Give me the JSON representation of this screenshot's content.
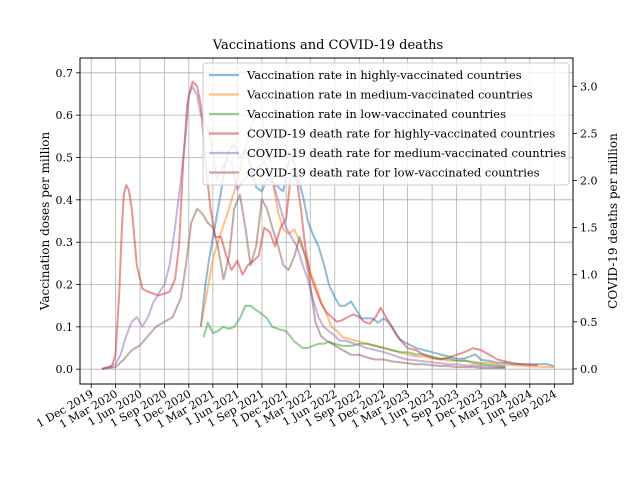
{
  "chart_data": {
    "type": "line",
    "title": "Vaccinations and COVID-19 deaths",
    "ylabel": "Vaccination doses per million",
    "y2label": "COVID-19 deaths per million",
    "ylim": [
      -0.035,
      0.735
    ],
    "y2lim": [
      -0.16,
      3.3
    ],
    "yticks": [
      0.0,
      0.1,
      0.2,
      0.3,
      0.4,
      0.5,
      0.6,
      0.7
    ],
    "yticklabels": [
      "0.0",
      "0.1",
      "0.2",
      "0.3",
      "0.4",
      "0.5",
      "0.6",
      "0.7"
    ],
    "y2ticks": [
      0.0,
      0.5,
      1.0,
      1.5,
      2.0,
      2.5,
      3.0
    ],
    "y2ticklabels": [
      "0.0",
      "0.5",
      "1.0",
      "1.5",
      "2.0",
      "2.5",
      "3.0"
    ],
    "xlim": [
      "2019-10-20",
      "2024-11-10"
    ],
    "xticks": [
      "2019-12-01",
      "2020-03-01",
      "2020-06-01",
      "2020-09-01",
      "2020-12-01",
      "2021-03-01",
      "2021-06-01",
      "2021-09-01",
      "2021-12-01",
      "2022-03-01",
      "2022-06-01",
      "2022-09-01",
      "2022-12-01",
      "2023-03-01",
      "2023-06-01",
      "2023-09-01",
      "2023-12-01",
      "2024-03-01",
      "2024-06-01",
      "2024-09-01"
    ],
    "xticklabels": [
      "1 Dec 2019",
      "1 Mar 2020",
      "1 Jun 2020",
      "1 Sep 2020",
      "1 Dec 2020",
      "1 Mar 2021",
      "1 Jun 2021",
      "1 Sep 2021",
      "1 Dec 2021",
      "1 Mar 2022",
      "1 Jun 2022",
      "1 Sep 2022",
      "1 Dec 2022",
      "1 Mar 2023",
      "1 Jun 2023",
      "1 Sep 2023",
      "1 Dec 2023",
      "1 Mar 2024",
      "1 Jun 2024",
      "1 Sep 2024"
    ],
    "grid": true,
    "legend_position": "top-right",
    "series": [
      {
        "name": "Vaccination rate in highly-vaccinated countries",
        "axis": "left",
        "color": "#1f77b4",
        "x": [
          "2021-01-15",
          "2021-02-01",
          "2021-02-15",
          "2021-03-01",
          "2021-03-15",
          "2021-04-01",
          "2021-04-15",
          "2021-05-01",
          "2021-05-20",
          "2021-06-10",
          "2021-07-01",
          "2021-07-20",
          "2021-08-10",
          "2021-09-01",
          "2021-09-20",
          "2021-10-10",
          "2021-11-01",
          "2021-11-20",
          "2021-12-05",
          "2021-12-20",
          "2022-01-05",
          "2022-01-20",
          "2022-02-05",
          "2022-02-20",
          "2022-03-10",
          "2022-04-01",
          "2022-04-20",
          "2022-05-10",
          "2022-06-01",
          "2022-06-20",
          "2022-07-10",
          "2022-08-01",
          "2022-08-20",
          "2022-09-10",
          "2022-10-01",
          "2022-10-20",
          "2022-11-10",
          "2022-12-01",
          "2022-12-20",
          "2023-01-10",
          "2023-02-01",
          "2023-03-01",
          "2023-04-01",
          "2023-05-01",
          "2023-06-01",
          "2023-07-01",
          "2023-08-01",
          "2023-09-01",
          "2023-10-01",
          "2023-10-20",
          "2023-11-10",
          "2023-12-01",
          "2024-01-01",
          "2024-02-01",
          "2024-03-01",
          "2024-04-01",
          "2024-05-01",
          "2024-06-01",
          "2024-07-01",
          "2024-08-01",
          "2024-09-01"
        ],
        "y": [
          0.1,
          0.2,
          0.26,
          0.31,
          0.36,
          0.42,
          0.48,
          0.52,
          0.53,
          0.5,
          0.52,
          0.48,
          0.43,
          0.42,
          0.45,
          0.44,
          0.43,
          0.42,
          0.48,
          0.5,
          0.48,
          0.44,
          0.4,
          0.35,
          0.32,
          0.29,
          0.25,
          0.2,
          0.17,
          0.15,
          0.15,
          0.16,
          0.14,
          0.12,
          0.12,
          0.12,
          0.11,
          0.12,
          0.11,
          0.09,
          0.07,
          0.06,
          0.05,
          0.045,
          0.04,
          0.035,
          0.03,
          0.025,
          0.025,
          0.03,
          0.035,
          0.022,
          0.02,
          0.015,
          0.015,
          0.012,
          0.012,
          0.01,
          0.012,
          0.012,
          0.007
        ]
      },
      {
        "name": "Vaccination rate in medium-vaccinated countries",
        "axis": "left",
        "color": "#ff7f0e",
        "x": [
          "2021-01-15",
          "2021-02-01",
          "2021-02-15",
          "2021-03-01",
          "2021-03-20",
          "2021-04-10",
          "2021-05-01",
          "2021-05-20",
          "2021-06-10",
          "2021-07-01",
          "2021-07-20",
          "2021-08-10",
          "2021-09-01",
          "2021-09-20",
          "2021-10-10",
          "2021-11-01",
          "2021-11-20",
          "2021-12-10",
          "2022-01-01",
          "2022-01-20",
          "2022-02-10",
          "2022-03-01",
          "2022-03-20",
          "2022-04-10",
          "2022-05-01",
          "2022-05-20",
          "2022-06-10",
          "2022-07-01",
          "2022-08-01",
          "2022-09-01",
          "2022-10-01",
          "2022-11-01",
          "2022-12-01",
          "2023-01-01",
          "2023-02-01",
          "2023-03-01",
          "2023-04-01",
          "2023-05-01",
          "2023-06-01",
          "2023-07-01",
          "2023-08-01",
          "2023-09-01",
          "2023-10-01",
          "2023-11-01",
          "2023-12-01",
          "2024-01-01",
          "2024-02-01",
          "2024-03-01",
          "2024-04-01",
          "2024-05-01",
          "2024-06-01",
          "2024-07-01",
          "2024-08-01",
          "2024-09-01"
        ],
        "y": [
          0.1,
          0.16,
          0.21,
          0.26,
          0.3,
          0.34,
          0.38,
          0.42,
          0.47,
          0.52,
          0.57,
          0.6,
          0.59,
          0.55,
          0.45,
          0.37,
          0.33,
          0.32,
          0.33,
          0.3,
          0.27,
          0.23,
          0.2,
          0.16,
          0.13,
          0.1,
          0.09,
          0.075,
          0.07,
          0.065,
          0.06,
          0.055,
          0.05,
          0.045,
          0.04,
          0.035,
          0.03,
          0.03,
          0.025,
          0.025,
          0.02,
          0.02,
          0.02,
          0.018,
          0.015,
          0.015,
          0.012,
          0.01,
          0.01,
          0.008,
          0.007,
          0.006,
          0.005,
          0.005
        ]
      },
      {
        "name": "Vaccination rate in low-vaccinated countries",
        "axis": "left",
        "color": "#2ca02c",
        "x": [
          "2021-01-25",
          "2021-02-10",
          "2021-03-01",
          "2021-03-20",
          "2021-04-10",
          "2021-05-01",
          "2021-05-20",
          "2021-06-10",
          "2021-07-01",
          "2021-07-20",
          "2021-08-10",
          "2021-09-01",
          "2021-09-20",
          "2021-10-10",
          "2021-11-01",
          "2021-12-01",
          "2022-01-01",
          "2022-02-01",
          "2022-02-20",
          "2022-03-10",
          "2022-04-01",
          "2022-04-20",
          "2022-05-10",
          "2022-06-01",
          "2022-07-01",
          "2022-08-01",
          "2022-09-01",
          "2022-10-01",
          "2022-11-01",
          "2022-12-01",
          "2023-01-01",
          "2023-02-01",
          "2023-03-01",
          "2023-04-01",
          "2023-05-01",
          "2023-06-01",
          "2023-07-01",
          "2023-08-01",
          "2023-09-01",
          "2023-10-01",
          "2023-11-01",
          "2023-12-01",
          "2024-01-01",
          "2024-02-01",
          "2024-03-01"
        ],
        "y": [
          0.075,
          0.11,
          0.085,
          0.09,
          0.1,
          0.095,
          0.1,
          0.12,
          0.15,
          0.15,
          0.14,
          0.13,
          0.12,
          0.1,
          0.095,
          0.09,
          0.065,
          0.05,
          0.05,
          0.055,
          0.06,
          0.06,
          0.065,
          0.06,
          0.055,
          0.055,
          0.06,
          0.06,
          0.055,
          0.05,
          0.045,
          0.04,
          0.04,
          0.035,
          0.035,
          0.03,
          0.025,
          0.025,
          0.02,
          0.02,
          0.015,
          0.012,
          0.01,
          0.008,
          0.006
        ]
      },
      {
        "name": "COVID-19 death rate for highly-vaccinated countries",
        "axis": "right",
        "color": "#d62728",
        "x": [
          "2020-01-10",
          "2020-02-15",
          "2020-03-01",
          "2020-03-15",
          "2020-03-25",
          "2020-04-01",
          "2020-04-10",
          "2020-04-20",
          "2020-05-01",
          "2020-05-20",
          "2020-06-10",
          "2020-07-01",
          "2020-07-20",
          "2020-08-10",
          "2020-09-01",
          "2020-09-20",
          "2020-10-10",
          "2020-10-25",
          "2020-11-10",
          "2020-11-25",
          "2020-12-05",
          "2020-12-15",
          "2021-01-01",
          "2021-01-15",
          "2021-02-01",
          "2021-02-20",
          "2021-03-10",
          "2021-04-01",
          "2021-04-20",
          "2021-05-10",
          "2021-06-01",
          "2021-06-20",
          "2021-07-10",
          "2021-08-01",
          "2021-08-20",
          "2021-09-10",
          "2021-10-01",
          "2021-10-20",
          "2021-11-10",
          "2021-12-01",
          "2021-12-20",
          "2022-01-10",
          "2022-01-25",
          "2022-02-10",
          "2022-03-01",
          "2022-03-20",
          "2022-04-10",
          "2022-05-01",
          "2022-05-20",
          "2022-06-10",
          "2022-07-01",
          "2022-07-20",
          "2022-08-10",
          "2022-09-01",
          "2022-09-20",
          "2022-10-10",
          "2022-11-01",
          "2022-11-20",
          "2022-12-10",
          "2023-01-01",
          "2023-01-20",
          "2023-02-10",
          "2023-03-01",
          "2023-04-01",
          "2023-05-01",
          "2023-06-01",
          "2023-07-01",
          "2023-08-01",
          "2023-09-01",
          "2023-10-01",
          "2023-11-01",
          "2023-12-01",
          "2024-01-01",
          "2024-02-01",
          "2024-03-01",
          "2024-04-01",
          "2024-05-01",
          "2024-06-01",
          "2024-07-01"
        ],
        "y": [
          0.0,
          0.02,
          0.15,
          0.8,
          1.5,
          1.85,
          1.95,
          1.9,
          1.7,
          1.1,
          0.85,
          0.82,
          0.8,
          0.78,
          0.8,
          0.82,
          0.95,
          1.3,
          2.2,
          2.8,
          2.95,
          3.05,
          3.0,
          2.8,
          2.2,
          1.7,
          1.4,
          1.4,
          1.2,
          1.05,
          1.15,
          1.0,
          1.1,
          1.15,
          1.2,
          1.5,
          1.45,
          1.3,
          1.5,
          1.6,
          2.1,
          2.0,
          1.7,
          1.3,
          1.0,
          0.85,
          0.7,
          0.6,
          0.55,
          0.5,
          0.52,
          0.55,
          0.58,
          0.55,
          0.5,
          0.48,
          0.55,
          0.65,
          0.55,
          0.45,
          0.35,
          0.28,
          0.22,
          0.2,
          0.15,
          0.12,
          0.1,
          0.12,
          0.15,
          0.18,
          0.22,
          0.2,
          0.15,
          0.1,
          0.08,
          0.06,
          0.05,
          0.05,
          0.04
        ]
      },
      {
        "name": "COVID-19 death rate for medium-vaccinated countries",
        "axis": "right",
        "color": "#9467bd",
        "x": [
          "2020-01-10",
          "2020-03-01",
          "2020-03-20",
          "2020-04-10",
          "2020-05-01",
          "2020-05-20",
          "2020-06-10",
          "2020-07-01",
          "2020-07-20",
          "2020-08-10",
          "2020-09-01",
          "2020-09-20",
          "2020-10-10",
          "2020-11-01",
          "2020-11-20",
          "2020-12-01",
          "2020-12-15",
          "2021-01-01",
          "2021-01-15",
          "2021-02-01",
          "2021-02-15",
          "2021-03-01",
          "2021-03-15",
          "2021-04-01",
          "2021-04-20",
          "2021-05-10",
          "2021-06-01",
          "2021-06-20",
          "2021-07-10",
          "2021-08-01",
          "2021-08-20",
          "2021-09-10",
          "2021-10-01",
          "2021-10-20",
          "2021-11-10",
          "2021-12-01",
          "2021-12-20",
          "2022-01-10",
          "2022-02-01",
          "2022-02-20",
          "2022-03-10",
          "2022-04-01",
          "2022-04-20",
          "2022-05-10",
          "2022-06-01",
          "2022-06-20",
          "2022-07-10",
          "2022-08-01",
          "2022-09-01",
          "2022-10-01",
          "2022-11-01",
          "2022-12-01",
          "2023-01-01",
          "2023-02-01",
          "2023-03-01",
          "2023-04-01",
          "2023-05-01",
          "2023-06-01",
          "2023-07-01",
          "2023-08-01",
          "2023-09-01",
          "2023-10-01",
          "2023-11-01",
          "2023-12-01",
          "2024-01-01",
          "2024-02-01",
          "2024-03-01"
        ],
        "y": [
          0.0,
          0.05,
          0.15,
          0.35,
          0.5,
          0.55,
          0.45,
          0.55,
          0.7,
          0.8,
          0.9,
          1.1,
          1.5,
          2.0,
          2.5,
          2.9,
          3.0,
          2.9,
          2.7,
          2.6,
          2.5,
          2.3,
          2.0,
          2.1,
          2.2,
          2.2,
          1.9,
          2.0,
          2.05,
          2.1,
          2.15,
          2.2,
          2.1,
          1.9,
          1.7,
          1.5,
          1.4,
          1.3,
          1.1,
          0.95,
          0.75,
          0.55,
          0.45,
          0.4,
          0.35,
          0.3,
          0.3,
          0.28,
          0.25,
          0.22,
          0.2,
          0.18,
          0.15,
          0.12,
          0.1,
          0.09,
          0.08,
          0.07,
          0.06,
          0.05,
          0.05,
          0.04,
          0.04,
          0.03,
          0.03,
          0.02,
          0.02
        ]
      },
      {
        "name": "COVID-19 death rate for low-vaccinated countries",
        "axis": "right",
        "color": "#8c564b",
        "x": [
          "2020-01-10",
          "2020-03-01",
          "2020-04-01",
          "2020-05-01",
          "2020-06-01",
          "2020-07-01",
          "2020-08-01",
          "2020-09-01",
          "2020-10-01",
          "2020-11-01",
          "2020-11-20",
          "2020-12-10",
          "2021-01-01",
          "2021-01-20",
          "2021-02-10",
          "2021-03-01",
          "2021-03-20",
          "2021-04-10",
          "2021-05-01",
          "2021-05-20",
          "2021-06-10",
          "2021-07-01",
          "2021-07-20",
          "2021-08-10",
          "2021-09-01",
          "2021-09-20",
          "2021-10-10",
          "2021-11-01",
          "2021-11-20",
          "2021-12-10",
          "2022-01-01",
          "2022-01-20",
          "2022-02-10",
          "2022-03-01",
          "2022-03-20",
          "2022-04-10",
          "2022-05-01",
          "2022-06-01",
          "2022-07-01",
          "2022-08-01",
          "2022-09-01",
          "2022-10-01",
          "2022-11-01",
          "2022-12-01",
          "2023-01-01",
          "2023-02-01",
          "2023-03-01",
          "2023-04-01",
          "2023-05-01",
          "2023-06-01",
          "2023-07-01",
          "2023-08-01",
          "2023-09-01",
          "2023-10-01",
          "2023-11-01",
          "2023-12-01",
          "2024-01-01",
          "2024-02-01",
          "2024-03-01"
        ],
        "y": [
          0.0,
          0.02,
          0.1,
          0.2,
          0.25,
          0.35,
          0.45,
          0.5,
          0.55,
          0.75,
          1.1,
          1.55,
          1.7,
          1.65,
          1.55,
          1.5,
          1.3,
          0.95,
          1.2,
          1.7,
          1.85,
          1.5,
          1.1,
          1.3,
          1.8,
          1.7,
          1.5,
          1.3,
          1.1,
          1.05,
          1.2,
          1.4,
          1.2,
          0.9,
          0.5,
          0.35,
          0.3,
          0.25,
          0.2,
          0.15,
          0.15,
          0.12,
          0.1,
          0.1,
          0.08,
          0.07,
          0.06,
          0.05,
          0.05,
          0.04,
          0.03,
          0.03,
          0.02,
          0.02,
          0.02,
          0.01,
          0.01,
          0.01,
          0.01
        ]
      }
    ]
  }
}
